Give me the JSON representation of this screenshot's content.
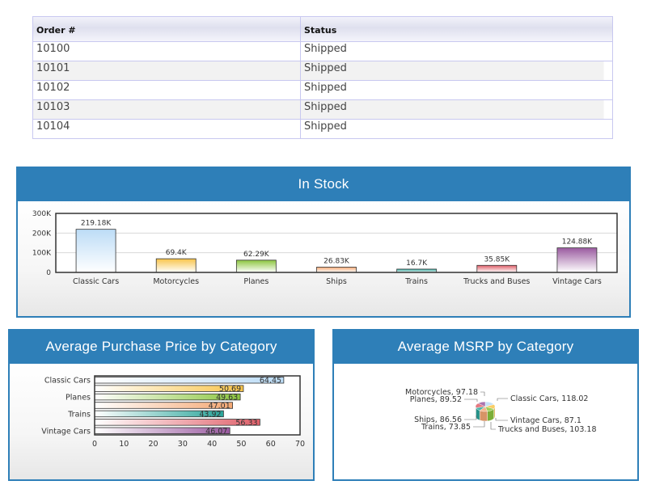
{
  "orders_table": {
    "headers": [
      "Order #",
      "Status"
    ],
    "rows": [
      [
        "10100",
        "Shipped"
      ],
      [
        "10101",
        "Shipped"
      ],
      [
        "10102",
        "Shipped"
      ],
      [
        "10103",
        "Shipped"
      ],
      [
        "10104",
        "Shipped"
      ]
    ]
  },
  "panels": {
    "in_stock": "In Stock",
    "avg_purchase": "Average Purchase Price by Category",
    "avg_msrp": "Average MSRP by Category"
  },
  "chart_data": [
    {
      "type": "bar",
      "title": "In Stock",
      "categories": [
        "Classic Cars",
        "Motorcycles",
        "Planes",
        "Ships",
        "Trains",
        "Trucks and Buses",
        "Vintage Cars"
      ],
      "values": [
        219180,
        69400,
        62290,
        26830,
        16700,
        35850,
        124880
      ],
      "value_labels": [
        "219.18K",
        "69.4K",
        "62.29K",
        "26.83K",
        "16.7K",
        "35.85K",
        "124.88K"
      ],
      "yticks": [
        "0",
        "100K",
        "200K",
        "300K"
      ],
      "ylim": [
        0,
        300000
      ],
      "grid": true,
      "colors": [
        "#bcdcf6",
        "#f8c44a",
        "#8cc63e",
        "#f4a874",
        "#2aa59a",
        "#e0606a",
        "#9a5aa0"
      ]
    },
    {
      "type": "bar",
      "orientation": "horizontal",
      "title": "Average Purchase Price by Category",
      "categories": [
        "Classic Cars",
        "Motorcycles",
        "Planes",
        "Ships",
        "Trains",
        "Trucks and Buses",
        "Vintage Cars"
      ],
      "category_labels_shown": [
        "Classic Cars",
        "",
        "Planes",
        "",
        "Trains",
        "",
        "Vintage Cars"
      ],
      "values": [
        64.45,
        50.69,
        49.63,
        47.01,
        43.92,
        56.33,
        46.07
      ],
      "value_labels": [
        "64.45",
        "50.69",
        "49.63",
        "47.01",
        "43.92",
        "56.33",
        "46.07"
      ],
      "xticks": [
        "0",
        "10",
        "20",
        "30",
        "40",
        "50",
        "60",
        "70"
      ],
      "xlim": [
        0,
        70
      ],
      "colors": [
        "#bcdcf6",
        "#f8c44a",
        "#8cc63e",
        "#f4a874",
        "#2aa59a",
        "#e0606a",
        "#9a5aa0"
      ]
    },
    {
      "type": "pie",
      "title": "Average MSRP by Category",
      "categories": [
        "Classic Cars",
        "Motorcycles",
        "Planes",
        "Ships",
        "Trains",
        "Trucks and Buses",
        "Vintage Cars"
      ],
      "values": [
        118.02,
        97.18,
        89.52,
        86.56,
        73.85,
        103.18,
        87.1
      ],
      "slice_labels": [
        "Classic Cars, 118.02",
        "Motorcycles, 97.18",
        "Planes, 89.52",
        "Ships, 86.56",
        "Trains, 73.85",
        "Trucks and Buses, 103.18",
        "Vintage Cars, 87.1"
      ],
      "colors": [
        "#bcdcf6",
        "#f8c44a",
        "#8cc63e",
        "#f4a874",
        "#2aa59a",
        "#e0606a",
        "#9a5aa0"
      ]
    }
  ]
}
